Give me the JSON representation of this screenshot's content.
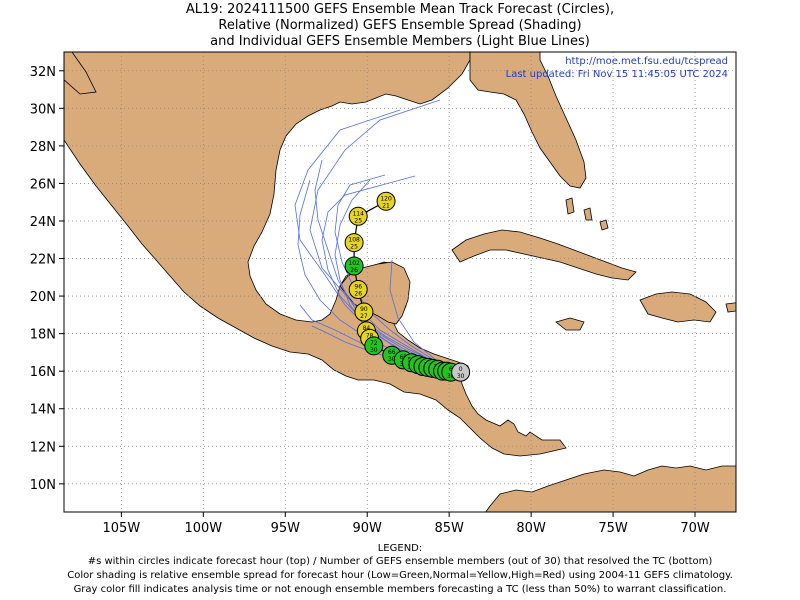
{
  "title": {
    "line1": "AL19: 2024111500 GEFS Ensemble Mean Track Forecast (Circles),",
    "line2": "Relative (Normalized) GEFS Ensemble Spread (Shading)",
    "line3": "and Individual GEFS Ensemble Members (Light Blue Lines)"
  },
  "credits": {
    "url": "http://moe.met.fsu.edu/tcspread",
    "updated": "Last updated: Fri Nov 15 11:45:05 UTC 2024"
  },
  "map_extent": {
    "lon_min": -108.5,
    "lon_max": -67.5,
    "lat_min": 8.5,
    "lat_max": 33.0
  },
  "axis": {
    "x_ticks": [
      {
        "lon": -105,
        "label": "105W"
      },
      {
        "lon": -100,
        "label": "100W"
      },
      {
        "lon": -95,
        "label": "95W"
      },
      {
        "lon": -90,
        "label": "90W"
      },
      {
        "lon": -85,
        "label": "85W"
      },
      {
        "lon": -80,
        "label": "80W"
      },
      {
        "lon": -75,
        "label": "75W"
      },
      {
        "lon": -70,
        "label": "70W"
      }
    ],
    "y_ticks": [
      {
        "lat": 32,
        "label": "32N"
      },
      {
        "lat": 30,
        "label": "30N"
      },
      {
        "lat": 28,
        "label": "28N"
      },
      {
        "lat": 26,
        "label": "26N"
      },
      {
        "lat": 24,
        "label": "24N"
      },
      {
        "lat": 22,
        "label": "22N"
      },
      {
        "lat": 20,
        "label": "20N"
      },
      {
        "lat": 18,
        "label": "18N"
      },
      {
        "lat": 16,
        "label": "16N"
      },
      {
        "lat": 14,
        "label": "14N"
      },
      {
        "lat": 12,
        "label": "12N"
      },
      {
        "lat": 10,
        "label": "10N"
      }
    ]
  },
  "colors": {
    "land": "#d9aa7a",
    "ocean": "#ffffff",
    "member_track": "#4f6ef0",
    "green": "#22c41e",
    "yellow": "#e6d423",
    "gray": "#c8c8c8",
    "grid": "#888888"
  },
  "forecast_points": [
    {
      "hour": "0",
      "members": "30",
      "lat": 15.95,
      "lon": -84.3,
      "color": "gray"
    },
    {
      "hour": "6",
      "members": "30",
      "lat": 15.95,
      "lon": -84.9,
      "color": "green"
    },
    {
      "hour": "12",
      "members": "30",
      "lat": 16.0,
      "lon": -85.15,
      "color": "green"
    },
    {
      "hour": "18",
      "members": "30",
      "lat": 16.0,
      "lon": -85.4,
      "color": "green"
    },
    {
      "hour": "24",
      "members": "30",
      "lat": 16.1,
      "lon": -85.7,
      "color": "green"
    },
    {
      "hour": "30",
      "members": "30",
      "lat": 16.15,
      "lon": -86.0,
      "color": "green"
    },
    {
      "hour": "36",
      "members": "30",
      "lat": 16.2,
      "lon": -86.3,
      "color": "green"
    },
    {
      "hour": "42",
      "members": "30",
      "lat": 16.25,
      "lon": -86.6,
      "color": "green"
    },
    {
      "hour": "48",
      "members": "30",
      "lat": 16.35,
      "lon": -86.9,
      "color": "green"
    },
    {
      "hour": "54",
      "members": "30",
      "lat": 16.45,
      "lon": -87.3,
      "color": "green"
    },
    {
      "hour": "60",
      "members": "30",
      "lat": 16.6,
      "lon": -87.8,
      "color": "green"
    },
    {
      "hour": "66",
      "members": "30",
      "lat": 16.85,
      "lon": -88.5,
      "color": "green"
    },
    {
      "hour": "72",
      "members": "30",
      "lat": 17.35,
      "lon": -89.6,
      "color": "green"
    },
    {
      "hour": "78",
      "members": "29",
      "lat": 17.75,
      "lon": -89.85,
      "color": "yellow"
    },
    {
      "hour": "84",
      "members": "28",
      "lat": 18.15,
      "lon": -90.05,
      "color": "yellow"
    },
    {
      "hour": "90",
      "members": "27",
      "lat": 19.15,
      "lon": -90.2,
      "color": "yellow"
    },
    {
      "hour": "96",
      "members": "26",
      "lat": 20.35,
      "lon": -90.55,
      "color": "yellow"
    },
    {
      "hour": "102",
      "members": "26",
      "lat": 21.6,
      "lon": -90.8,
      "color": "green"
    },
    {
      "hour": "108",
      "members": "25",
      "lat": 22.85,
      "lon": -90.8,
      "color": "yellow"
    },
    {
      "hour": "114",
      "members": "25",
      "lat": 24.25,
      "lon": -90.55,
      "color": "yellow"
    },
    {
      "hour": "120",
      "members": "21",
      "lat": 25.05,
      "lon": -88.85,
      "color": "yellow"
    }
  ],
  "legend": {
    "heading": "LEGEND:",
    "line1": "#s within circles indicate forecast hour (top) / Number of GEFS ensemble members (out of 30) that resolved the TC (bottom)",
    "line2": "Color shading is relative ensemble spread for forecast hour (Low=Green,Normal=Yellow,High=Red) using 2004-11 GEFS climatology.",
    "line3": "Gray color fill indicates analysis time or not enough ensemble members forecasting a TC (less than 50%) to warrant classification."
  }
}
